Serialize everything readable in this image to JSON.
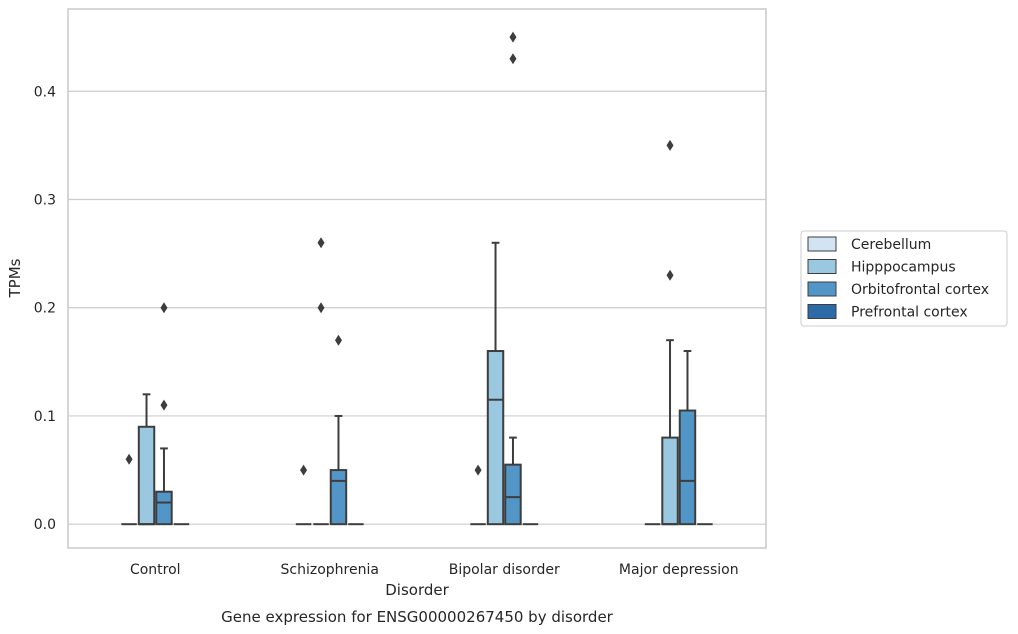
{
  "caption": "Gene expression for ENSG00000267450 by disorder",
  "chart_data": {
    "type": "box",
    "title": "",
    "xlabel": "Disorder",
    "ylabel": "TPMs",
    "ylim": [
      -0.022,
      0.476
    ],
    "yticks": [
      0.0,
      0.1,
      0.2,
      0.3,
      0.4
    ],
    "ytick_labels": [
      "0.0",
      "0.1",
      "0.2",
      "0.3",
      "0.4"
    ],
    "grid": "horizontal",
    "legend_position": "right",
    "categories": [
      "Control",
      "Schizophrenia",
      "Bipolar disorder",
      "Major depression"
    ],
    "series": [
      {
        "name": "Cerebellum",
        "color": "#d2e3f3",
        "boxes": [
          {
            "min": 0,
            "q1": 0,
            "median": 0,
            "q3": 0,
            "max": 0,
            "outliers": [
              0.06
            ]
          },
          {
            "min": 0,
            "q1": 0,
            "median": 0,
            "q3": 0,
            "max": 0,
            "outliers": [
              0.05
            ]
          },
          {
            "min": 0,
            "q1": 0,
            "median": 0,
            "q3": 0,
            "max": 0,
            "outliers": [
              0.05
            ]
          },
          {
            "min": 0,
            "q1": 0,
            "median": 0,
            "q3": 0,
            "max": 0,
            "outliers": []
          }
        ]
      },
      {
        "name": "Hipppocampus",
        "color": "#9ac8e0",
        "boxes": [
          {
            "min": 0,
            "q1": 0,
            "median": 0,
            "q3": 0.09,
            "max": 0.12,
            "outliers": []
          },
          {
            "min": 0,
            "q1": 0,
            "median": 0,
            "q3": 0,
            "max": 0,
            "outliers": [
              0.2,
              0.26
            ]
          },
          {
            "min": 0,
            "q1": 0,
            "median": 0.115,
            "q3": 0.16,
            "max": 0.26,
            "outliers": []
          },
          {
            "min": 0,
            "q1": 0,
            "median": 0,
            "q3": 0.08,
            "max": 0.17,
            "outliers": [
              0.23,
              0.35
            ]
          }
        ]
      },
      {
        "name": "Orbitofrontal cortex",
        "color": "#5296c8",
        "boxes": [
          {
            "min": 0,
            "q1": 0,
            "median": 0.02,
            "q3": 0.03,
            "max": 0.07,
            "outliers": [
              0.11,
              0.2
            ]
          },
          {
            "min": 0,
            "q1": 0,
            "median": 0.04,
            "q3": 0.05,
            "max": 0.1,
            "outliers": [
              0.17
            ]
          },
          {
            "min": 0,
            "q1": 0,
            "median": 0.025,
            "q3": 0.055,
            "max": 0.08,
            "outliers": [
              0.43,
              0.45
            ]
          },
          {
            "min": 0,
            "q1": 0,
            "median": 0.04,
            "q3": 0.105,
            "max": 0.16,
            "outliers": []
          }
        ]
      },
      {
        "name": "Prefrontal cortex",
        "color": "#2c6aa8",
        "boxes": [
          {
            "min": 0,
            "q1": 0,
            "median": 0,
            "q3": 0,
            "max": 0,
            "outliers": []
          },
          {
            "min": 0,
            "q1": 0,
            "median": 0,
            "q3": 0,
            "max": 0,
            "outliers": []
          },
          {
            "min": 0,
            "q1": 0,
            "median": 0,
            "q3": 0,
            "max": 0,
            "outliers": []
          },
          {
            "min": 0,
            "q1": 0,
            "median": 0,
            "q3": 0,
            "max": 0,
            "outliers": []
          }
        ]
      }
    ]
  }
}
